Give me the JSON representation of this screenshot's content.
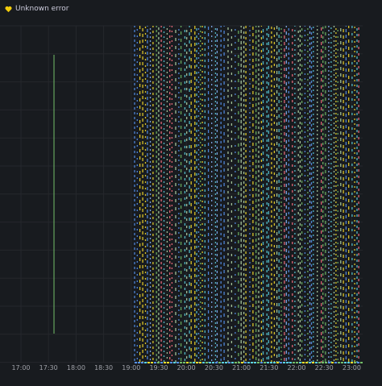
{
  "header": {
    "title": "Unknown error"
  },
  "x_axis": {
    "ticks": [
      "17:00",
      "17:30",
      "18:00",
      "18:30",
      "19:00",
      "19:30",
      "20:00",
      "20:30",
      "21:00",
      "21:30",
      "22:00",
      "22:30",
      "23:00"
    ]
  }
}
